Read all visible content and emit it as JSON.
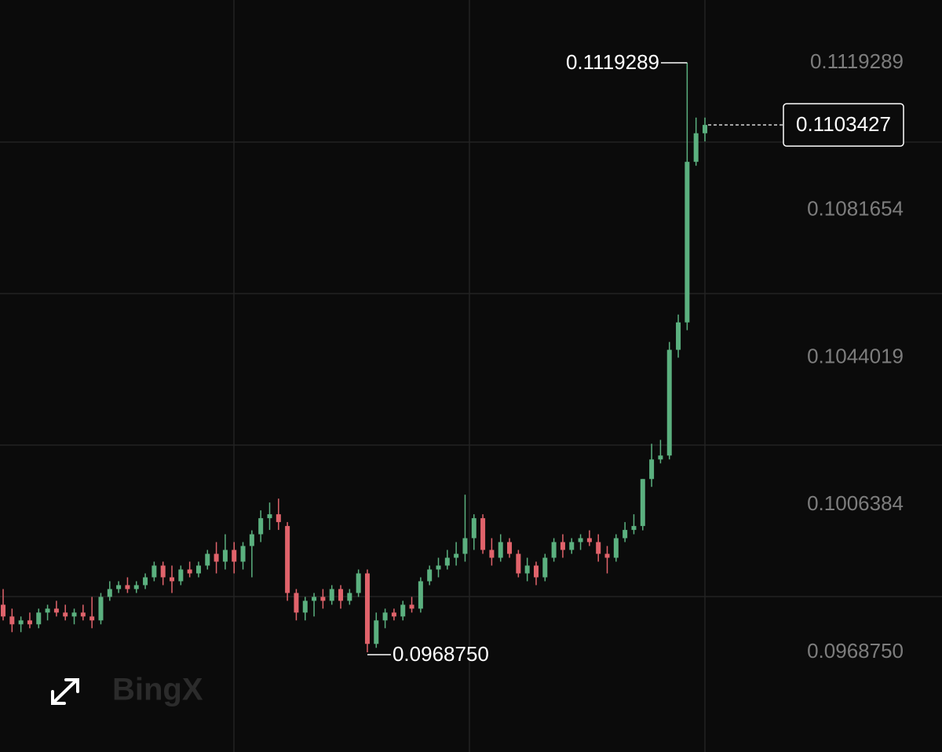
{
  "chart_data": {
    "type": "candlestick",
    "open": [
      0.09809,
      0.09779,
      0.09759,
      0.09769,
      0.09759,
      0.09789,
      0.09799,
      0.09789,
      0.09779,
      0.09789,
      0.09779,
      0.09769,
      0.09829,
      0.09849,
      0.09859,
      0.09849,
      0.09859,
      0.09879,
      0.09909,
      0.09879,
      0.09869,
      0.09899,
      0.09889,
      0.09909,
      0.09939,
      0.09919,
      0.09949,
      0.09919,
      0.09959,
      0.09989,
      0.1003,
      0.1004,
      0.1001,
      0.09839,
      0.09789,
      0.09819,
      0.09829,
      0.09819,
      0.09849,
      0.09819,
      0.09839,
      0.09889,
      0.09709,
      0.09769,
      0.09789,
      0.09779,
      0.09809,
      0.09799,
      0.09869,
      0.09899,
      0.09909,
      0.09929,
      0.09939,
      0.09979,
      0.1003,
      0.09949,
      0.09929,
      0.09969,
      0.09939,
      0.09889,
      0.09909,
      0.09879,
      0.09929,
      0.09969,
      0.09949,
      0.09969,
      0.09979,
      0.09969,
      0.09939,
      0.09929,
      0.09979,
      0.1,
      0.1001,
      0.1013,
      0.1018,
      0.1019,
      0.1046,
      0.1053,
      0.1094,
      0.11013
    ],
    "high": [
      0.09849,
      0.09799,
      0.09779,
      0.09789,
      0.09799,
      0.09809,
      0.09819,
      0.09809,
      0.09799,
      0.09809,
      0.09829,
      0.09839,
      0.09869,
      0.09869,
      0.09879,
      0.09869,
      0.09889,
      0.09919,
      0.09919,
      0.09909,
      0.09909,
      0.09919,
      0.09919,
      0.09949,
      0.09969,
      0.09989,
      0.09969,
      0.09969,
      0.09999,
      0.1005,
      0.1007,
      0.1008,
      0.1002,
      0.09849,
      0.09829,
      0.09839,
      0.09849,
      0.09859,
      0.09859,
      0.09849,
      0.09899,
      0.09899,
      0.09789,
      0.09799,
      0.09799,
      0.09819,
      0.09829,
      0.09879,
      0.09909,
      0.09929,
      0.09949,
      0.09969,
      0.1009,
      0.1004,
      0.1004,
      0.09979,
      0.09989,
      0.09979,
      0.09949,
      0.09929,
      0.09919,
      0.09939,
      0.09979,
      0.09989,
      0.09979,
      0.09989,
      0.09999,
      0.09989,
      0.09959,
      0.09989,
      0.1002,
      0.1004,
      0.1013,
      0.1022,
      0.1023,
      0.1048,
      0.1055,
      0.1119289,
      0.11053,
      0.11053
    ],
    "low": [
      0.09769,
      0.09739,
      0.09739,
      0.09749,
      0.09749,
      0.09769,
      0.09779,
      0.09769,
      0.09759,
      0.09769,
      0.09749,
      0.09759,
      0.09819,
      0.09839,
      0.09839,
      0.09839,
      0.09849,
      0.09869,
      0.09859,
      0.09839,
      0.09859,
      0.09879,
      0.09879,
      0.09899,
      0.09889,
      0.09899,
      0.09889,
      0.09899,
      0.09879,
      0.09969,
      0.1,
      0.1,
      0.09819,
      0.09769,
      0.09769,
      0.09779,
      0.09799,
      0.09809,
      0.09799,
      0.09809,
      0.09829,
      0.096875,
      0.09699,
      0.09749,
      0.09769,
      0.09769,
      0.09789,
      0.09789,
      0.09859,
      0.09879,
      0.09899,
      0.09909,
      0.09919,
      0.09949,
      0.09939,
      0.09909,
      0.09919,
      0.09929,
      0.09879,
      0.09869,
      0.09859,
      0.09869,
      0.09919,
      0.09929,
      0.09939,
      0.09949,
      0.09959,
      0.09919,
      0.09889,
      0.09919,
      0.09969,
      0.09989,
      0.09999,
      0.1011,
      0.1017,
      0.1018,
      0.1044,
      0.1051,
      0.1093,
      0.10992
    ],
    "close": [
      0.09779,
      0.09759,
      0.09769,
      0.09759,
      0.09789,
      0.09799,
      0.09789,
      0.09779,
      0.09789,
      0.09779,
      0.09769,
      0.09829,
      0.09849,
      0.09859,
      0.09849,
      0.09859,
      0.09879,
      0.09909,
      0.09879,
      0.09869,
      0.09899,
      0.09889,
      0.09909,
      0.09939,
      0.09919,
      0.09949,
      0.09919,
      0.09959,
      0.09989,
      0.1003,
      0.1004,
      0.1002,
      0.09839,
      0.09789,
      0.09819,
      0.09829,
      0.09819,
      0.09849,
      0.09819,
      0.09839,
      0.09889,
      0.09709,
      0.09769,
      0.09789,
      0.09779,
      0.09809,
      0.09799,
      0.09869,
      0.09899,
      0.09909,
      0.09929,
      0.09939,
      0.09979,
      0.1003,
      0.09949,
      0.09929,
      0.09969,
      0.09939,
      0.09889,
      0.09909,
      0.09879,
      0.09929,
      0.09969,
      0.09949,
      0.09969,
      0.09979,
      0.09969,
      0.09939,
      0.09929,
      0.09979,
      0.1,
      0.1001,
      0.1013,
      0.1018,
      0.1019,
      0.1046,
      0.1053,
      0.1094,
      0.11013,
      0.1103427
    ],
    "up_color": "#5bb07f",
    "down_color": "#e0636b",
    "ylim": [
      0.0943293,
      0.1135325
    ],
    "yticks": [
      {
        "value": 0.096875,
        "label": "0.0968750"
      },
      0.1006384,
      0.1044019,
      0.1081654,
      0.1119289
    ],
    "max_marker": {
      "value": 0.1119289,
      "label": "0.1119289"
    },
    "min_marker": {
      "value": 0.096875,
      "label": "0.0968750"
    },
    "last_price": {
      "value": 0.1103427,
      "label": "0.1103427"
    },
    "watermark": "BingX"
  }
}
